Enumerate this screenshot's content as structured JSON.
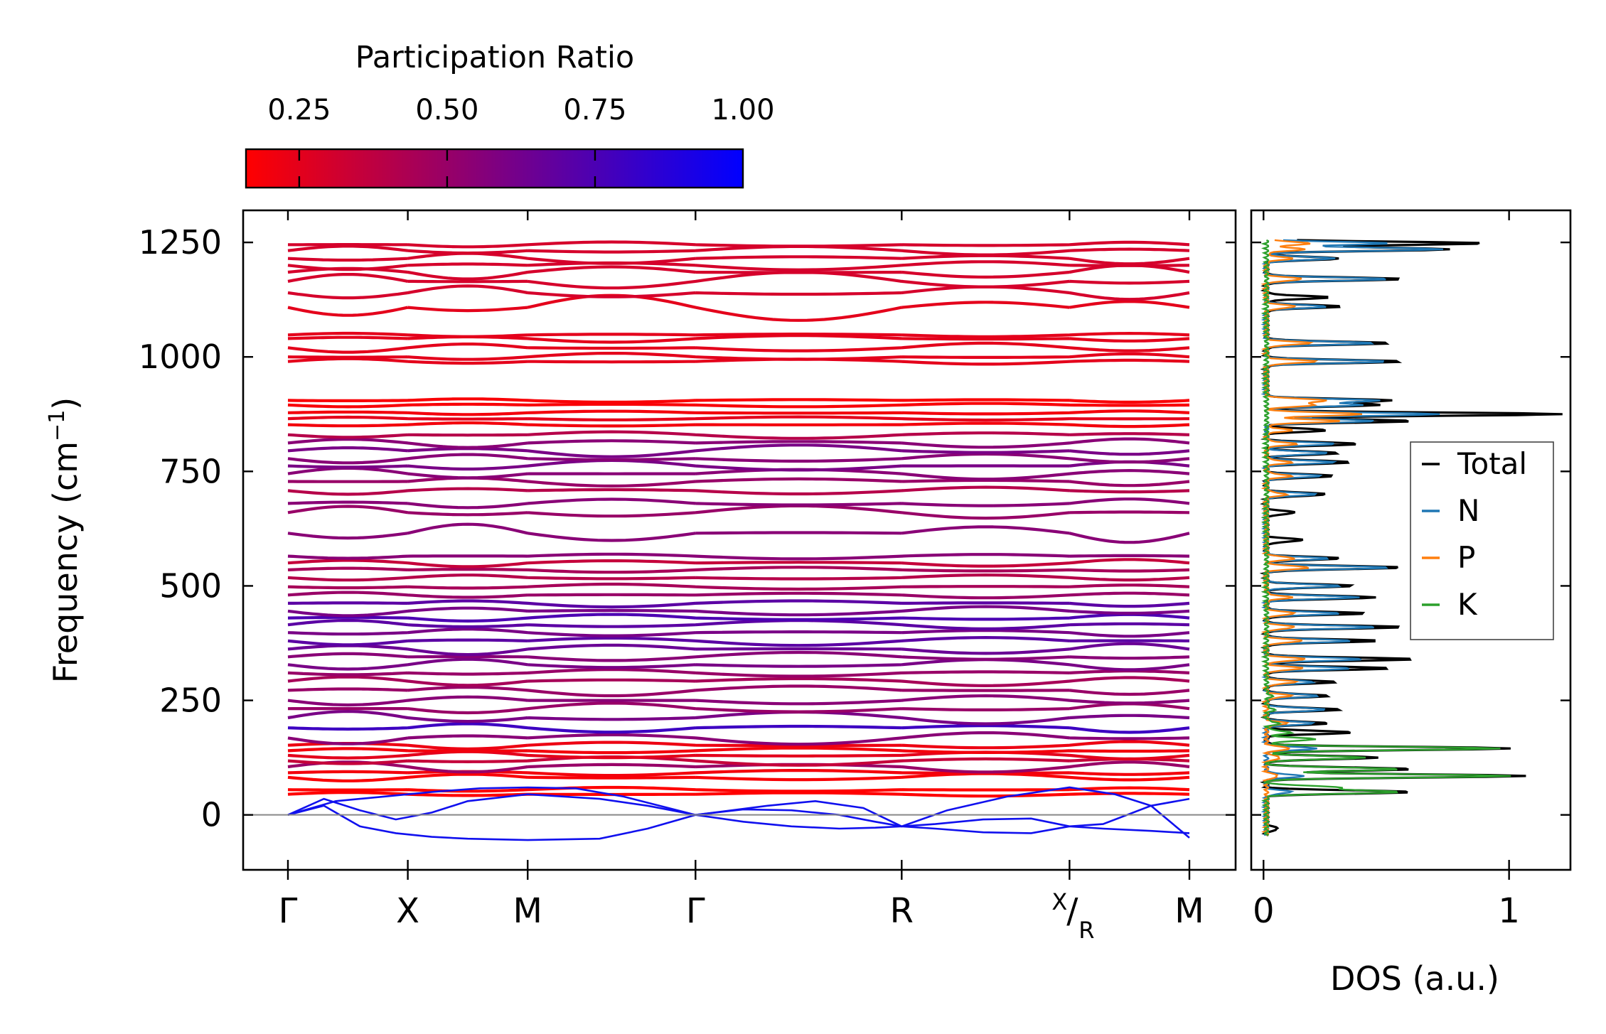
{
  "chart_data": [
    {
      "type": "line",
      "panel": "band-structure",
      "ylabel": "Frequency (cm",
      "ylabel_sup": "−1",
      "ylabel_close": ")",
      "ylim": [
        -120,
        1320
      ],
      "yticks": [
        0,
        250,
        500,
        750,
        1000,
        1250
      ],
      "ytick_labels": [
        "0",
        "250",
        "500",
        "750",
        "1000",
        "1250"
      ],
      "kpath": [
        {
          "label": "Γ",
          "pos": 0.0
        },
        {
          "label": "X",
          "pos": 0.5
        },
        {
          "label": "M",
          "pos": 1.0
        },
        {
          "label": "Γ",
          "pos": 1.7
        },
        {
          "label": "R",
          "pos": 2.56
        },
        {
          "label": "X",
          "sub": "R",
          "pos": 3.26
        },
        {
          "label": "M",
          "pos": 3.76
        }
      ],
      "colorbar": {
        "title": "Participation Ratio",
        "range": [
          0.16,
          1.0
        ],
        "ticks": [
          0.25,
          0.5,
          0.75,
          1.0
        ],
        "tick_labels": [
          "0.25",
          "0.50",
          "0.75",
          "1.00"
        ],
        "color_low": "#ff0000",
        "color_high": "#0000ff"
      },
      "acoustic_branches": [
        {
          "x": [
            0.0,
            0.15,
            0.3,
            0.45,
            0.6,
            0.75,
            1.0,
            1.3,
            1.5,
            1.7,
            1.9,
            2.1,
            2.3,
            2.45,
            2.56,
            2.7,
            2.9,
            3.1,
            3.26,
            3.4,
            3.6,
            3.76
          ],
          "y": [
            0,
            35,
            10,
            -10,
            5,
            30,
            45,
            35,
            20,
            0,
            12,
            10,
            0,
            -15,
            -25,
            -20,
            -10,
            -8,
            -25,
            -30,
            -35,
            -40
          ]
        },
        {
          "x": [
            0.0,
            0.15,
            0.3,
            0.45,
            0.6,
            0.75,
            1.0,
            1.3,
            1.5,
            1.7,
            1.9,
            2.1,
            2.3,
            2.45,
            2.56,
            2.7,
            2.9,
            3.1,
            3.26,
            3.4,
            3.6,
            3.76
          ],
          "y": [
            0,
            20,
            -25,
            -40,
            -48,
            -52,
            -55,
            -52,
            -30,
            0,
            -15,
            -25,
            -30,
            -28,
            -25,
            -30,
            -38,
            -40,
            -25,
            -20,
            20,
            35
          ]
        },
        {
          "x": [
            0.0,
            0.2,
            0.4,
            0.6,
            0.8,
            1.0,
            1.2,
            1.4,
            1.7,
            2.0,
            2.2,
            2.4,
            2.56,
            2.75,
            3.0,
            3.26,
            3.45,
            3.6,
            3.76
          ],
          "y": [
            0,
            30,
            40,
            50,
            58,
            60,
            58,
            40,
            0,
            20,
            30,
            15,
            -25,
            10,
            40,
            60,
            45,
            20,
            -50
          ]
        }
      ],
      "optical_bands": [
        {
          "base": 45,
          "amp": 4,
          "pr": 0.15
        },
        {
          "base": 55,
          "amp": 5,
          "pr": 0.15
        },
        {
          "base": 82,
          "amp": 8,
          "pr": 0.18
        },
        {
          "base": 92,
          "amp": 6,
          "pr": 0.2
        },
        {
          "base": 105,
          "amp": 12,
          "pr": 0.5
        },
        {
          "base": 118,
          "amp": 10,
          "pr": 0.35
        },
        {
          "base": 130,
          "amp": 8,
          "pr": 0.25
        },
        {
          "base": 140,
          "amp": 6,
          "pr": 0.2
        },
        {
          "base": 152,
          "amp": 8,
          "pr": 0.22
        },
        {
          "base": 168,
          "amp": 14,
          "pr": 0.55
        },
        {
          "base": 190,
          "amp": 10,
          "pr": 0.8
        },
        {
          "base": 212,
          "amp": 14,
          "pr": 0.6
        },
        {
          "base": 232,
          "amp": 12,
          "pr": 0.5
        },
        {
          "base": 250,
          "amp": 10,
          "pr": 0.55
        },
        {
          "base": 272,
          "amp": 12,
          "pr": 0.5
        },
        {
          "base": 292,
          "amp": 10,
          "pr": 0.45
        },
        {
          "base": 310,
          "amp": 8,
          "pr": 0.5
        },
        {
          "base": 328,
          "amp": 12,
          "pr": 0.6
        },
        {
          "base": 345,
          "amp": 10,
          "pr": 0.55
        },
        {
          "base": 362,
          "amp": 12,
          "pr": 0.65
        },
        {
          "base": 380,
          "amp": 10,
          "pr": 0.7
        },
        {
          "base": 398,
          "amp": 8,
          "pr": 0.6
        },
        {
          "base": 415,
          "amp": 10,
          "pr": 0.7
        },
        {
          "base": 430,
          "amp": 8,
          "pr": 0.75
        },
        {
          "base": 445,
          "amp": 10,
          "pr": 0.6
        },
        {
          "base": 462,
          "amp": 8,
          "pr": 0.7
        },
        {
          "base": 480,
          "amp": 6,
          "pr": 0.5
        },
        {
          "base": 498,
          "amp": 6,
          "pr": 0.45
        },
        {
          "base": 518,
          "amp": 6,
          "pr": 0.4
        },
        {
          "base": 535,
          "amp": 6,
          "pr": 0.45
        },
        {
          "base": 550,
          "amp": 8,
          "pr": 0.35
        },
        {
          "base": 565,
          "amp": 6,
          "pr": 0.55
        },
        {
          "base": 615,
          "amp": 20,
          "pr": 0.55
        },
        {
          "base": 660,
          "amp": 15,
          "pr": 0.5
        },
        {
          "base": 680,
          "amp": 10,
          "pr": 0.55
        },
        {
          "base": 708,
          "amp": 8,
          "pr": 0.4
        },
        {
          "base": 728,
          "amp": 10,
          "pr": 0.5
        },
        {
          "base": 745,
          "amp": 12,
          "pr": 0.55
        },
        {
          "base": 762,
          "amp": 12,
          "pr": 0.6
        },
        {
          "base": 778,
          "amp": 10,
          "pr": 0.55
        },
        {
          "base": 795,
          "amp": 14,
          "pr": 0.6
        },
        {
          "base": 812,
          "amp": 10,
          "pr": 0.55
        },
        {
          "base": 830,
          "amp": 8,
          "pr": 0.4
        },
        {
          "base": 852,
          "amp": 4,
          "pr": 0.2
        },
        {
          "base": 865,
          "amp": 4,
          "pr": 0.25
        },
        {
          "base": 878,
          "amp": 4,
          "pr": 0.2
        },
        {
          "base": 895,
          "amp": 4,
          "pr": 0.18
        },
        {
          "base": 905,
          "amp": 4,
          "pr": 0.18
        },
        {
          "base": 990,
          "amp": 6,
          "pr": 0.25
        },
        {
          "base": 1000,
          "amp": 8,
          "pr": 0.25
        },
        {
          "base": 1020,
          "amp": 10,
          "pr": 0.25
        },
        {
          "base": 1040,
          "amp": 8,
          "pr": 0.25
        },
        {
          "base": 1048,
          "amp": 4,
          "pr": 0.25
        },
        {
          "base": 1108,
          "amp": 30,
          "pr": 0.25
        },
        {
          "base": 1140,
          "amp": 15,
          "pr": 0.3
        },
        {
          "base": 1165,
          "amp": 20,
          "pr": 0.3
        },
        {
          "base": 1185,
          "amp": 15,
          "pr": 0.3
        },
        {
          "base": 1200,
          "amp": 10,
          "pr": 0.3
        },
        {
          "base": 1215,
          "amp": 12,
          "pr": 0.3
        },
        {
          "base": 1232,
          "amp": 10,
          "pr": 0.3
        },
        {
          "base": 1245,
          "amp": 6,
          "pr": 0.3
        }
      ]
    },
    {
      "type": "line",
      "panel": "dos",
      "xlabel": "DOS (a.u.)",
      "xlim": [
        -0.05,
        1.25
      ],
      "xticks": [
        0,
        1
      ],
      "xtick_labels": [
        "0",
        "1"
      ],
      "legend_position": "right",
      "series": [
        {
          "name": "Total",
          "color": "#000000",
          "peaks": [
            [
              -30,
              0.05
            ],
            [
              50,
              0.6
            ],
            [
              85,
              1.05
            ],
            [
              100,
              0.6
            ],
            [
              125,
              0.45
            ],
            [
              145,
              0.99
            ],
            [
              180,
              0.35
            ],
            [
              200,
              0.25
            ],
            [
              230,
              0.3
            ],
            [
              260,
              0.25
            ],
            [
              290,
              0.28
            ],
            [
              320,
              0.5
            ],
            [
              340,
              0.6
            ],
            [
              380,
              0.45
            ],
            [
              410,
              0.55
            ],
            [
              440,
              0.4
            ],
            [
              475,
              0.45
            ],
            [
              500,
              0.35
            ],
            [
              540,
              0.55
            ],
            [
              560,
              0.3
            ],
            [
              600,
              0.15
            ],
            [
              660,
              0.12
            ],
            [
              700,
              0.25
            ],
            [
              740,
              0.28
            ],
            [
              770,
              0.35
            ],
            [
              790,
              0.3
            ],
            [
              810,
              0.38
            ],
            [
              840,
              0.25
            ],
            [
              860,
              0.6
            ],
            [
              875,
              1.2
            ],
            [
              895,
              0.45
            ],
            [
              905,
              0.5
            ],
            [
              990,
              0.55
            ],
            [
              1030,
              0.5
            ],
            [
              1110,
              0.3
            ],
            [
              1130,
              0.25
            ],
            [
              1170,
              0.55
            ],
            [
              1215,
              0.3
            ],
            [
              1235,
              0.75
            ],
            [
              1248,
              0.9
            ]
          ]
        },
        {
          "name": "N",
          "color": "#1f77b4",
          "peaks": [
            [
              50,
              0.1
            ],
            [
              85,
              0.15
            ],
            [
              145,
              0.2
            ],
            [
              200,
              0.2
            ],
            [
              230,
              0.25
            ],
            [
              260,
              0.22
            ],
            [
              290,
              0.2
            ],
            [
              320,
              0.35
            ],
            [
              340,
              0.4
            ],
            [
              380,
              0.35
            ],
            [
              410,
              0.45
            ],
            [
              440,
              0.3
            ],
            [
              475,
              0.38
            ],
            [
              500,
              0.3
            ],
            [
              540,
              0.5
            ],
            [
              560,
              0.25
            ],
            [
              700,
              0.2
            ],
            [
              740,
              0.22
            ],
            [
              770,
              0.28
            ],
            [
              790,
              0.25
            ],
            [
              810,
              0.28
            ],
            [
              860,
              0.45
            ],
            [
              875,
              0.7
            ],
            [
              895,
              0.38
            ],
            [
              905,
              0.45
            ],
            [
              990,
              0.5
            ],
            [
              1030,
              0.45
            ],
            [
              1110,
              0.25
            ],
            [
              1170,
              0.5
            ],
            [
              1215,
              0.28
            ],
            [
              1235,
              0.72
            ],
            [
              1248,
              0.5
            ]
          ]
        },
        {
          "name": "P",
          "color": "#ff7f0e",
          "peaks": [
            [
              85,
              0.05
            ],
            [
              125,
              0.06
            ],
            [
              145,
              0.1
            ],
            [
              200,
              0.08
            ],
            [
              260,
              0.1
            ],
            [
              290,
              0.12
            ],
            [
              320,
              0.15
            ],
            [
              340,
              0.16
            ],
            [
              380,
              0.15
            ],
            [
              410,
              0.12
            ],
            [
              440,
              0.12
            ],
            [
              475,
              0.1
            ],
            [
              540,
              0.18
            ],
            [
              560,
              0.12
            ],
            [
              700,
              0.08
            ],
            [
              740,
              0.1
            ],
            [
              770,
              0.1
            ],
            [
              810,
              0.12
            ],
            [
              840,
              0.1
            ],
            [
              860,
              0.3
            ],
            [
              875,
              0.4
            ],
            [
              895,
              0.2
            ],
            [
              905,
              0.25
            ],
            [
              990,
              0.2
            ],
            [
              1030,
              0.18
            ],
            [
              1110,
              0.12
            ],
            [
              1170,
              0.15
            ],
            [
              1215,
              0.1
            ],
            [
              1235,
              0.15
            ],
            [
              1248,
              0.18
            ]
          ]
        },
        {
          "name": "K",
          "color": "#2ca02c",
          "peaks": [
            [
              50,
              0.55
            ],
            [
              60,
              0.3
            ],
            [
              85,
              0.99
            ],
            [
              100,
              0.55
            ],
            [
              125,
              0.4
            ],
            [
              145,
              0.95
            ],
            [
              165,
              0.2
            ],
            [
              180,
              0.1
            ],
            [
              200,
              0.05
            ],
            [
              230,
              0.03
            ],
            [
              260,
              0.02
            ]
          ]
        }
      ]
    }
  ]
}
